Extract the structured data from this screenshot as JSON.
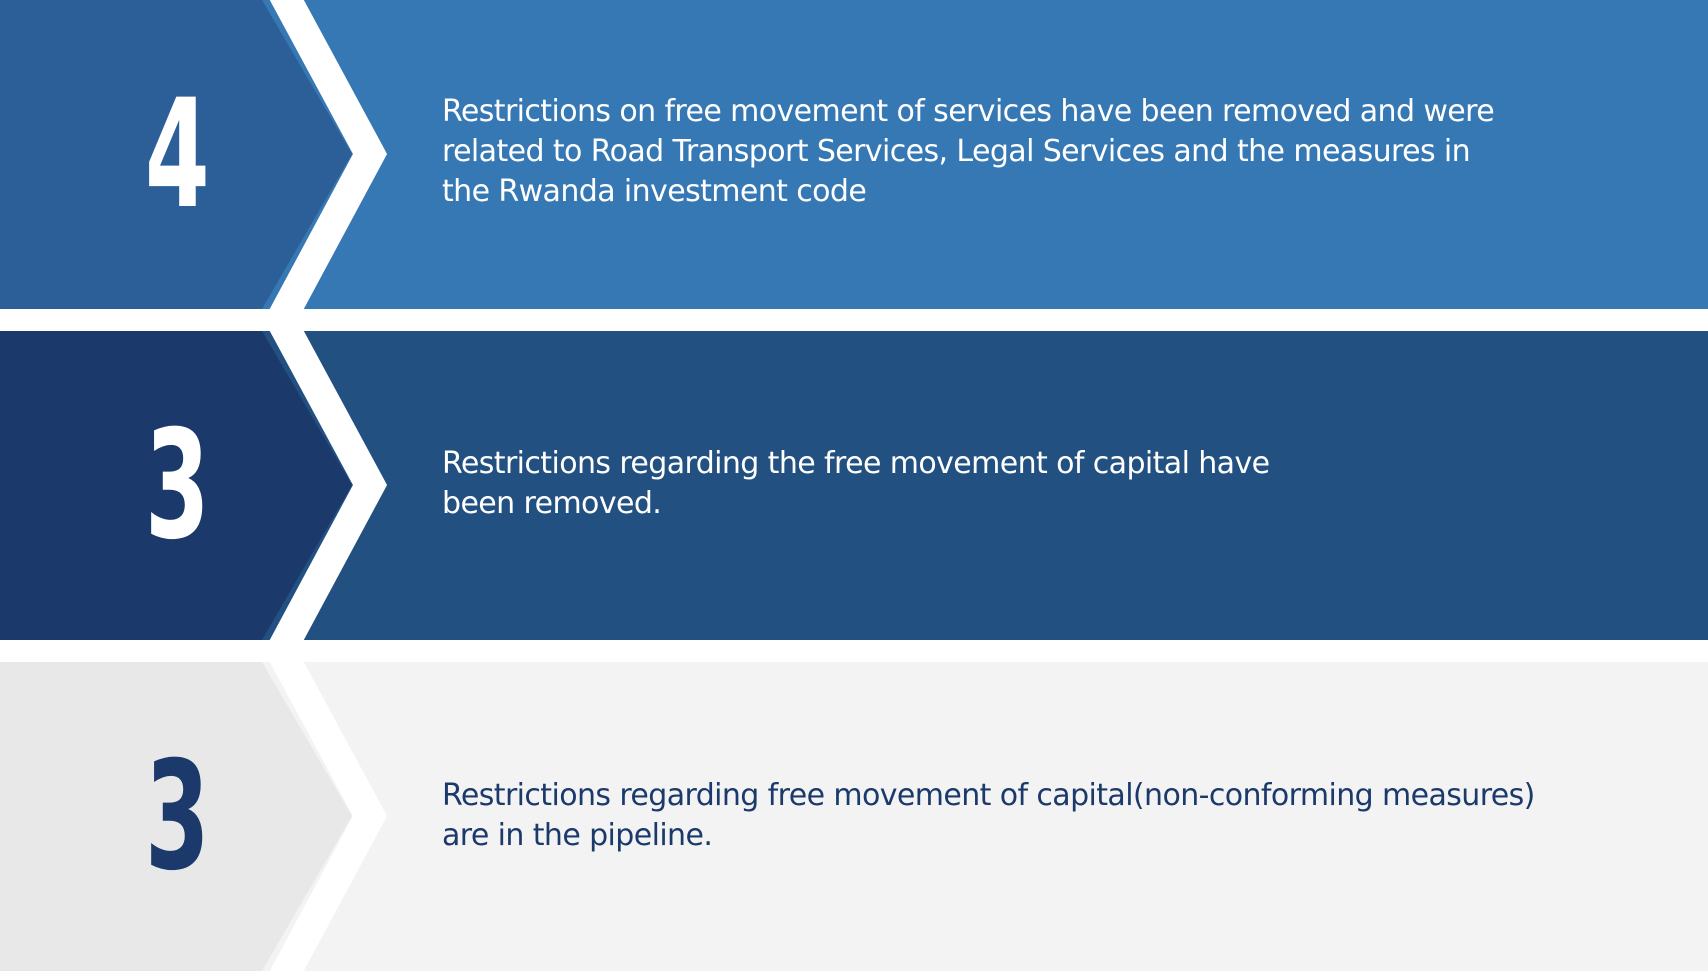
{
  "colors": {
    "row_1_badge": "#2c5f98",
    "row_1_panel": "#3678b4",
    "row_2_badge": "#1b3a6b",
    "row_2_panel": "#225081",
    "row_3_badge": "#e8e8e8",
    "row_3_panel": "#f3f3f3",
    "separator": "#ffffff",
    "dark_text": "#1b3a6b"
  },
  "rows": [
    {
      "number": "4",
      "text_lines": [
        "Restrictions on free movement of services have been removed and were",
        "related to Road Transport Services, Legal Services and the measures in",
        "the Rwanda investment code"
      ]
    },
    {
      "number": "3",
      "text_lines": [
        "Restrictions regarding the free movement of capital have",
        "been removed."
      ]
    },
    {
      "number": "3",
      "text_lines": [
        "Restrictions regarding free movement of capital(non-conforming measures)",
        "are in the pipeline."
      ]
    }
  ]
}
